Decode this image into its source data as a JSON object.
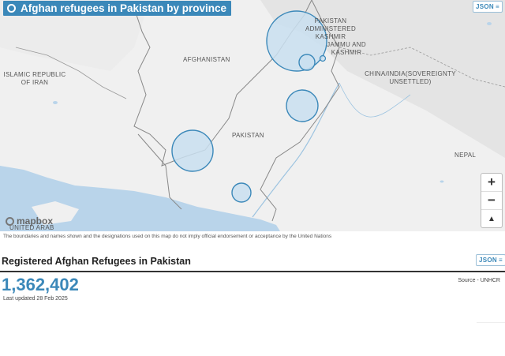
{
  "map": {
    "title": "Afghan refugees in Pakistan by province",
    "json_label": "JSON",
    "attribution_brand": "mapbox",
    "colors": {
      "accent": "#3b88b9",
      "bubble_fill": "#c9dff0",
      "bubble_stroke": "#3b88b9",
      "water": "#b9d4ea"
    },
    "place_labels": [
      "PAKISTAN ADMINISTERED KASHMIR",
      "JAMMU AND KASHMIR",
      "AFGHANISTAN",
      "ISLAMIC REPUBLIC OF IRAN",
      "CHINA/INDIA(SOVEREIGNTY UNSETTLED)",
      "PAKISTAN",
      "NEPAL",
      "UNITED ARAB"
    ],
    "zoom_controls": [
      "+",
      "−",
      "▲"
    ],
    "disclaimer": "The boundaries and names shown and the designations used on this map do not imply official endorsement or acceptance by the United Nations"
  },
  "summary": {
    "title": "Registered Afghan Refugees in Pakistan",
    "json_label": "JSON",
    "total": "1,362,402",
    "updated": "Last updated 28 Feb 2025",
    "source": "Source - UNHCR"
  }
}
